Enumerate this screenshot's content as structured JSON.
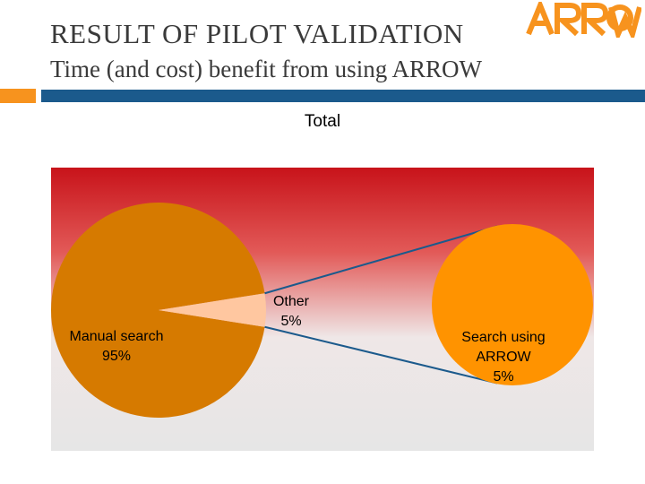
{
  "slide": {
    "title": "RESULT OF PILOT VALIDATION",
    "subtitle": "Time (and cost) benefit from using ARROW",
    "logo_text": "ARROW"
  },
  "colors": {
    "accent_orange": "#f7931e",
    "accent_blue": "#1b5a8c",
    "pie_main": "#d67a00",
    "pie_other": "#ffc7a0",
    "bar_pie": "#ff9300"
  },
  "chart_data": {
    "type": "bar-of-pie",
    "title": "Total",
    "pie": [
      {
        "name": "Manual  search",
        "value": 95,
        "label": "95%"
      },
      {
        "name": "Other",
        "value": 5,
        "label": "5%"
      }
    ],
    "secondary": [
      {
        "name": "Search using ARROW",
        "value": 5,
        "label": "5%"
      }
    ]
  }
}
